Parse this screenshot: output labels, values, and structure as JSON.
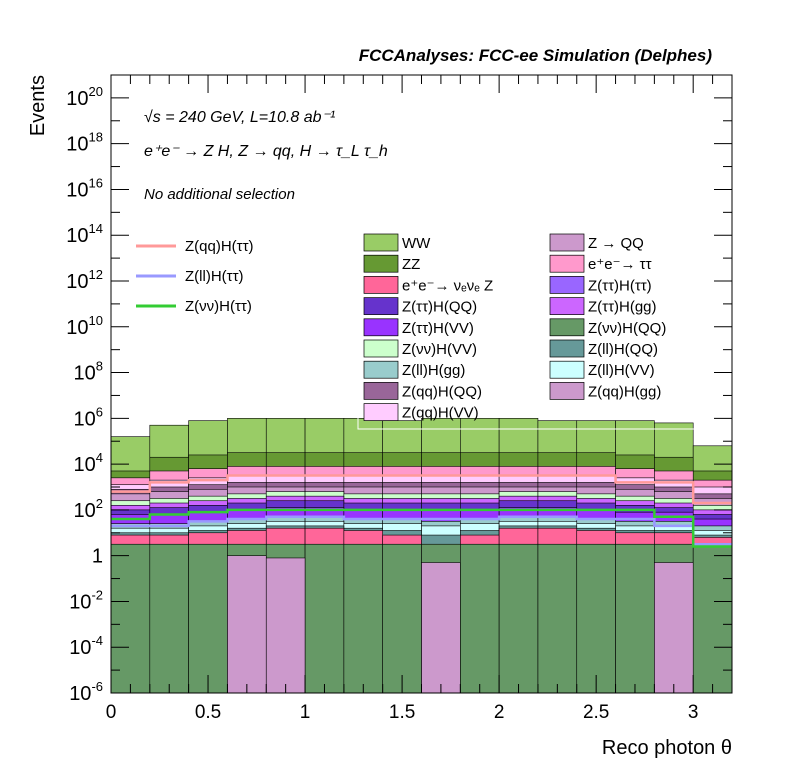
{
  "chart_data": {
    "type": "bar",
    "stacked": true,
    "yscale": "log",
    "title": "FCCAnalyses: FCC-ee Simulation (Delphes)",
    "xlabel": "Reco photon θ",
    "ylabel": "Events",
    "xlim": [
      0,
      3.2
    ],
    "ylim_exp": [
      -6,
      21
    ],
    "x_ticks": [
      "0",
      "0.5",
      "1",
      "1.5",
      "2",
      "2.5",
      "3"
    ],
    "x_tick_values": [
      0,
      0.5,
      1,
      1.5,
      2,
      2.5,
      3
    ],
    "y_ticks": [
      {
        "base": "10",
        "exp": "20",
        "value": 1e+20
      },
      {
        "base": "10",
        "exp": "18",
        "value": 1e+18
      },
      {
        "base": "10",
        "exp": "16",
        "value": 1e+16
      },
      {
        "base": "10",
        "exp": "14",
        "value": 100000000000000.0
      },
      {
        "base": "10",
        "exp": "12",
        "value": 1000000000000.0
      },
      {
        "base": "10",
        "exp": "10",
        "value": 10000000000.0
      },
      {
        "base": "10",
        "exp": "8",
        "value": 100000000.0
      },
      {
        "base": "10",
        "exp": "6",
        "value": 1000000.0
      },
      {
        "base": "10",
        "exp": "4",
        "value": 10000.0
      },
      {
        "base": "10",
        "exp": "2",
        "value": 100.0
      },
      {
        "base": "1",
        "exp": "",
        "value": 1
      },
      {
        "base": "10",
        "exp": "-2",
        "value": 0.01
      },
      {
        "base": "10",
        "exp": "-4",
        "value": 0.0001
      },
      {
        "base": "10",
        "exp": "-6",
        "value": 1e-06
      }
    ],
    "annotations": [
      "√s = 240 GeV, L=10.8 ab⁻¹",
      "e⁺e⁻ → Z H, Z → qq, H → τ_L τ_h",
      "No additional selection"
    ],
    "bin_edges": [
      0,
      0.2,
      0.4,
      0.6,
      0.8,
      1.0,
      1.2,
      1.4,
      1.6,
      1.8,
      2.0,
      2.2,
      2.4,
      2.6,
      2.8,
      3.0,
      3.2
    ],
    "stack_tops_log10": [
      {
        "name": "Z(νν)H(QQ)",
        "color": "#669966",
        "values": [
          0.5,
          0.5,
          0.5,
          0.5,
          0.5,
          0.5,
          0.5,
          0.5,
          0.5,
          0.5,
          0.5,
          0.5,
          0.5,
          0.5,
          0.5,
          0.5
        ]
      },
      {
        "name": "e⁺e⁻→ νₑνₑ Z",
        "color": "#ff6699",
        "values": [
          0.9,
          0.9,
          1.0,
          1.1,
          1.2,
          1.2,
          1.1,
          0.9,
          0.4,
          0.9,
          1.2,
          1.2,
          1.1,
          1.0,
          1.0,
          0.8
        ]
      },
      {
        "name": "Z(ll)H(QQ)",
        "color": "#669999",
        "values": [
          1.0,
          1.0,
          1.1,
          1.2,
          1.3,
          1.3,
          1.2,
          1.1,
          0.9,
          1.1,
          1.3,
          1.3,
          1.2,
          1.1,
          1.1,
          0.9
        ]
      },
      {
        "name": "Z(ll)H(VV)",
        "color": "#ccffff",
        "values": [
          1.2,
          1.2,
          1.3,
          1.4,
          1.5,
          1.5,
          1.4,
          1.4,
          1.3,
          1.4,
          1.5,
          1.5,
          1.4,
          1.3,
          1.3,
          1.1
        ]
      },
      {
        "name": "Z(ll)H(gg)",
        "color": "#99cccc",
        "values": [
          1.4,
          1.4,
          1.5,
          1.6,
          1.7,
          1.7,
          1.6,
          1.6,
          1.5,
          1.6,
          1.7,
          1.7,
          1.6,
          1.5,
          1.5,
          1.3
        ]
      },
      {
        "name": "Z(ττ)H(VV)",
        "color": "#9933ff",
        "values": [
          1.8,
          1.8,
          1.9,
          2.0,
          2.1,
          2.1,
          2.0,
          2.0,
          2.0,
          2.0,
          2.1,
          2.1,
          2.0,
          1.9,
          1.9,
          1.6
        ]
      },
      {
        "name": "Z(ττ)H(QQ)",
        "color": "#6633cc",
        "values": [
          2.0,
          2.1,
          2.2,
          2.3,
          2.4,
          2.4,
          2.3,
          2.3,
          2.3,
          2.3,
          2.4,
          2.4,
          2.3,
          2.2,
          2.1,
          1.8
        ]
      },
      {
        "name": "Z(ττ)H(gg)",
        "color": "#cc66ff",
        "values": [
          2.2,
          2.3,
          2.4,
          2.5,
          2.6,
          2.6,
          2.5,
          2.5,
          2.5,
          2.5,
          2.6,
          2.6,
          2.5,
          2.4,
          2.3,
          2.0
        ]
      },
      {
        "name": "Z(νν)H(VV)",
        "color": "#ccffcc",
        "values": [
          2.4,
          2.5,
          2.6,
          2.7,
          2.8,
          2.8,
          2.7,
          2.7,
          2.7,
          2.7,
          2.8,
          2.8,
          2.7,
          2.6,
          2.5,
          2.2
        ]
      },
      {
        "name": "Z(qq)H(gg)",
        "color": "#cc99cc",
        "values": [
          2.7,
          2.8,
          2.9,
          3.0,
          3.0,
          3.0,
          3.0,
          3.0,
          3.0,
          3.0,
          3.0,
          3.0,
          3.0,
          2.9,
          2.8,
          2.5
        ]
      },
      {
        "name": "Z(qq)H(QQ)",
        "color": "#996699",
        "values": [
          2.9,
          3.0,
          3.1,
          3.2,
          3.2,
          3.2,
          3.2,
          3.2,
          3.2,
          3.2,
          3.2,
          3.2,
          3.2,
          3.1,
          3.0,
          2.7
        ]
      },
      {
        "name": "Z(qq)H(VV)",
        "color": "#ffccff",
        "values": [
          3.1,
          3.3,
          3.4,
          3.5,
          3.5,
          3.5,
          3.5,
          3.5,
          3.5,
          3.5,
          3.5,
          3.5,
          3.5,
          3.4,
          3.3,
          3.0
        ]
      },
      {
        "name": "e⁺e⁻→ ττ",
        "color": "#ff99cc",
        "values": [
          3.4,
          3.7,
          3.8,
          3.9,
          3.9,
          3.9,
          3.9,
          3.9,
          3.9,
          3.9,
          3.9,
          3.9,
          3.9,
          3.8,
          3.7,
          3.3
        ]
      },
      {
        "name": "ZZ",
        "color": "#669933",
        "values": [
          3.7,
          4.3,
          4.4,
          4.5,
          4.5,
          4.5,
          4.5,
          4.5,
          4.5,
          4.5,
          4.5,
          4.5,
          4.5,
          4.4,
          4.3,
          3.7
        ]
      },
      {
        "name": "WW",
        "color": "#99cc66",
        "values": [
          5.2,
          5.7,
          5.9,
          6.0,
          6.0,
          6.0,
          6.0,
          5.9,
          6.0,
          6.0,
          6.0,
          5.9,
          5.9,
          5.9,
          5.8,
          4.8
        ]
      }
    ],
    "overlay_tops_log10": [
      {
        "name": "Z → QQ",
        "color": "#cc99cc",
        "values": [
          null,
          null,
          null,
          0.0,
          -0.1,
          null,
          null,
          null,
          -0.3,
          null,
          null,
          null,
          null,
          null,
          -0.3,
          null
        ]
      }
    ],
    "lines_log10": [
      {
        "name": "Z(qq)H(ττ)",
        "color": "#ff9999",
        "values": [
          2.8,
          3.2,
          3.3,
          3.5,
          3.5,
          3.5,
          3.5,
          3.5,
          3.5,
          3.5,
          3.5,
          3.5,
          3.5,
          3.2,
          3.2,
          2.3
        ]
      },
      {
        "name": "Z(ll)H(ττ)",
        "color": "#9999ff",
        "values": [
          1.3,
          1.3,
          1.5,
          1.6,
          1.7,
          1.7,
          1.6,
          1.6,
          1.6,
          1.6,
          1.7,
          1.7,
          1.6,
          1.6,
          1.3,
          0.5
        ]
      },
      {
        "name": "Z(νν)H(ττ)",
        "color": "#33cc33",
        "values": [
          1.6,
          1.8,
          1.9,
          2.0,
          2.0,
          2.0,
          2.0,
          2.0,
          2.0,
          2.0,
          2.0,
          2.0,
          2.0,
          2.0,
          1.7,
          0.4
        ]
      }
    ],
    "legend_lines": [
      "Z(qq)H(ττ)",
      "Z(ll)H(ττ)",
      "Z(νν)H(ττ)"
    ],
    "legend_fills_left": [
      {
        "label": "WW",
        "color": "#99cc66"
      },
      {
        "label": "ZZ",
        "color": "#669933"
      },
      {
        "label": "e⁺e⁻→ νₑνₑ Z",
        "color": "#ff6699"
      },
      {
        "label": "Z(ττ)H(QQ)",
        "color": "#6633cc"
      },
      {
        "label": "Z(ττ)H(VV)",
        "color": "#9933ff"
      },
      {
        "label": "Z(νν)H(VV)",
        "color": "#ccffcc"
      },
      {
        "label": "Z(ll)H(gg)",
        "color": "#99cccc"
      },
      {
        "label": "Z(qq)H(QQ)",
        "color": "#996699"
      },
      {
        "label": "Z(qq)H(VV)",
        "color": "#ffccff"
      }
    ],
    "legend_fills_right": [
      {
        "label": "Z → QQ",
        "color": "#cc99cc"
      },
      {
        "label": "e⁺e⁻→ ττ",
        "color": "#ff99cc"
      },
      {
        "label": "Z(ττ)H(ττ)",
        "color": "#9966ff"
      },
      {
        "label": "Z(ττ)H(gg)",
        "color": "#cc66ff"
      },
      {
        "label": "Z(νν)H(QQ)",
        "color": "#669966"
      },
      {
        "label": "Z(ll)H(QQ)",
        "color": "#669999"
      },
      {
        "label": "Z(ll)H(VV)",
        "color": "#ccffff"
      },
      {
        "label": "Z(qq)H(gg)",
        "color": "#cc99cc"
      }
    ]
  }
}
